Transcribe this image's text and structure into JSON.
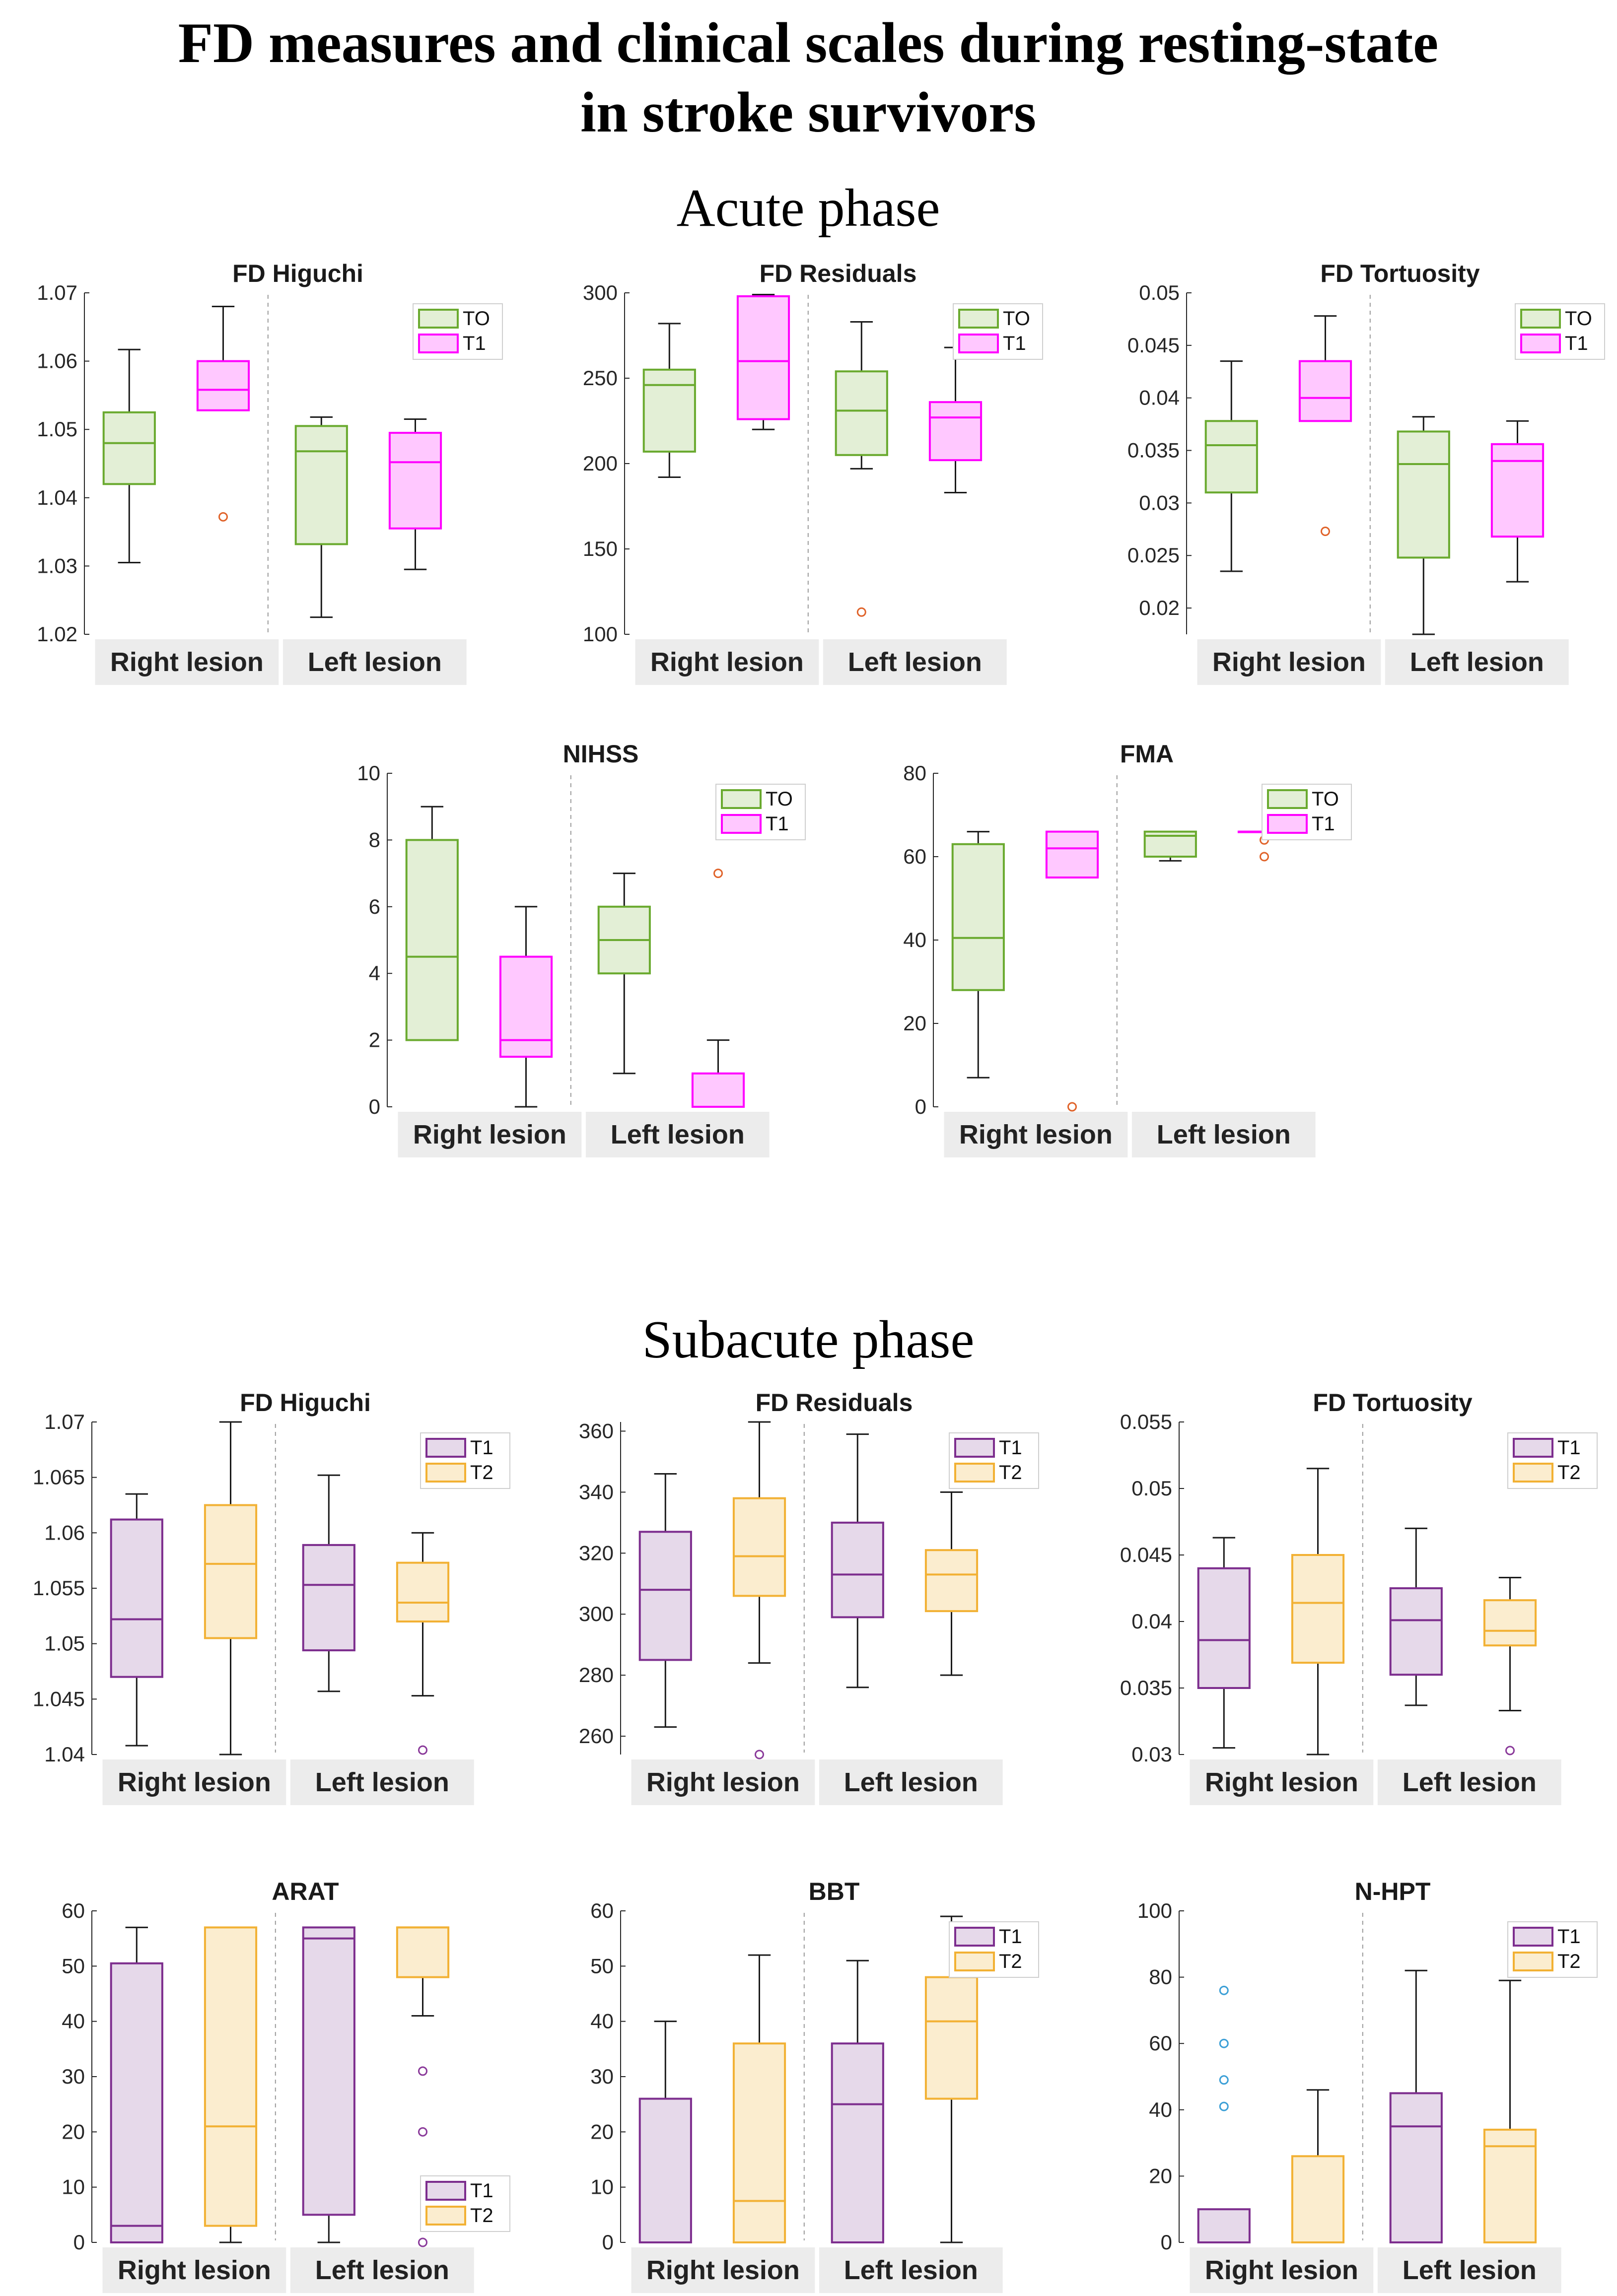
{
  "title_line1": "FD measures and clinical scales during resting-state",
  "title_line2": "in stroke survivors",
  "acute_title": "Acute phase",
  "subacute_title": "Subacute phase",
  "group_labels": [
    "Right lesion",
    "Left lesion"
  ],
  "colors": {
    "T0": {
      "edge": "#6aaa2f",
      "fill": "#e3efd6"
    },
    "T1_acute": {
      "edge": "#ff00ff",
      "fill": "#ffc8ff"
    },
    "T1_sub": {
      "edge": "#7d2e8e",
      "fill": "#e6d9ea"
    },
    "T2": {
      "edge": "#f2b134",
      "fill": "#fbedcf"
    },
    "outlier_acute": "#e0632a",
    "outlier_sub": "#8a3a9a",
    "outlier_nhpt": "#3b9fd6"
  },
  "chart_data": [
    {
      "type": "boxplot",
      "title": "FD Higuchi",
      "phase": "Acute phase",
      "ylim": [
        1.02,
        1.07
      ],
      "yticks": [
        "1.02",
        "1.03",
        "1.04",
        "1.05",
        "1.06",
        "1.07"
      ],
      "legend": [
        "TO",
        "T1"
      ],
      "legend_position": "top-right",
      "categories": [
        "Right lesion",
        "Left lesion"
      ],
      "boxes": [
        {
          "group": "Right lesion",
          "series": "TO",
          "min": 1.0305,
          "q1": 1.042,
          "median": 1.048,
          "q3": 1.0525,
          "max": 1.0617,
          "outliers": []
        },
        {
          "group": "Right lesion",
          "series": "T1",
          "min": 1.0528,
          "q1": 1.0528,
          "median": 1.0558,
          "q3": 1.06,
          "max": 1.068,
          "outliers": [
            1.0372
          ]
        },
        {
          "group": "Left lesion",
          "series": "TO",
          "min": 1.0225,
          "q1": 1.0332,
          "median": 1.0468,
          "q3": 1.0505,
          "max": 1.0518,
          "outliers": []
        },
        {
          "group": "Left lesion",
          "series": "T1",
          "min": 1.0295,
          "q1": 1.0355,
          "median": 1.0452,
          "q3": 1.0495,
          "max": 1.0515,
          "outliers": []
        }
      ]
    },
    {
      "type": "boxplot",
      "title": "FD Residuals",
      "phase": "Acute phase",
      "ylim": [
        100,
        300
      ],
      "yticks": [
        "100",
        "150",
        "200",
        "250",
        "300"
      ],
      "legend": [
        "TO",
        "T1"
      ],
      "legend_position": "top-right",
      "categories": [
        "Right lesion",
        "Left lesion"
      ],
      "boxes": [
        {
          "group": "Right lesion",
          "series": "TO",
          "min": 192,
          "q1": 207,
          "median": 246,
          "q3": 255,
          "max": 282,
          "outliers": []
        },
        {
          "group": "Right lesion",
          "series": "T1",
          "min": 220,
          "q1": 226,
          "median": 260,
          "q3": 298,
          "max": 299,
          "outliers": []
        },
        {
          "group": "Left lesion",
          "series": "TO",
          "min": 197,
          "q1": 205,
          "median": 231,
          "q3": 254,
          "max": 283,
          "outliers": [
            113
          ]
        },
        {
          "group": "Left lesion",
          "series": "T1",
          "min": 183,
          "q1": 202,
          "median": 227,
          "q3": 236,
          "max": 268,
          "outliers": []
        }
      ]
    },
    {
      "type": "boxplot",
      "title": "FD Tortuosity",
      "phase": "Acute phase",
      "ylim": [
        0.0175,
        0.05
      ],
      "yticks": [
        "0.02",
        "0.025",
        "0.03",
        "0.035",
        "0.04",
        "0.045",
        "0.05"
      ],
      "legend": [
        "TO",
        "T1"
      ],
      "legend_position": "top-right",
      "categories": [
        "Right lesion",
        "Left lesion"
      ],
      "boxes": [
        {
          "group": "Right lesion",
          "series": "TO",
          "min": 0.0235,
          "q1": 0.031,
          "median": 0.0355,
          "q3": 0.0378,
          "max": 0.0435,
          "outliers": []
        },
        {
          "group": "Right lesion",
          "series": "T1",
          "min": 0.0378,
          "q1": 0.0378,
          "median": 0.04,
          "q3": 0.0435,
          "max": 0.0478,
          "outliers": [
            0.0273
          ]
        },
        {
          "group": "Left lesion",
          "series": "TO",
          "min": 0.0175,
          "q1": 0.0248,
          "median": 0.0337,
          "q3": 0.0368,
          "max": 0.0382,
          "outliers": []
        },
        {
          "group": "Left lesion",
          "series": "T1",
          "min": 0.0225,
          "q1": 0.0268,
          "median": 0.034,
          "q3": 0.0356,
          "max": 0.0378,
          "outliers": []
        }
      ]
    },
    {
      "type": "boxplot",
      "title": "NIHSS",
      "phase": "Acute phase",
      "ylim": [
        0,
        10
      ],
      "yticks": [
        "0",
        "2",
        "4",
        "6",
        "8",
        "10"
      ],
      "legend": [
        "TO",
        "T1"
      ],
      "legend_position": "top-right",
      "categories": [
        "Right lesion",
        "Left lesion"
      ],
      "boxes": [
        {
          "group": "Right lesion",
          "series": "TO",
          "min": 2,
          "q1": 2,
          "median": 4.5,
          "q3": 8,
          "max": 9,
          "outliers": []
        },
        {
          "group": "Right lesion",
          "series": "T1",
          "min": 0,
          "q1": 1.5,
          "median": 2,
          "q3": 4.5,
          "max": 6,
          "outliers": []
        },
        {
          "group": "Left lesion",
          "series": "TO",
          "min": 1,
          "q1": 4,
          "median": 5,
          "q3": 6,
          "max": 7,
          "outliers": []
        },
        {
          "group": "Left lesion",
          "series": "T1",
          "min": 0,
          "q1": 0,
          "median": 0,
          "q3": 1,
          "max": 2,
          "outliers": [
            7
          ]
        }
      ]
    },
    {
      "type": "boxplot",
      "title": "FMA",
      "phase": "Acute phase",
      "ylim": [
        0,
        80
      ],
      "yticks": [
        "0",
        "20",
        "40",
        "60",
        "80"
      ],
      "legend": [
        "TO",
        "T1"
      ],
      "legend_position": "top-right",
      "categories": [
        "Right lesion",
        "Left lesion"
      ],
      "boxes": [
        {
          "group": "Right lesion",
          "series": "TO",
          "min": 7,
          "q1": 28,
          "median": 40.5,
          "q3": 63,
          "max": 66,
          "outliers": []
        },
        {
          "group": "Right lesion",
          "series": "T1",
          "min": 55,
          "q1": 55,
          "median": 62,
          "q3": 66,
          "max": 66,
          "outliers": [
            0
          ]
        },
        {
          "group": "Left lesion",
          "series": "TO",
          "min": 59,
          "q1": 60,
          "median": 65,
          "q3": 66,
          "max": 66,
          "outliers": []
        },
        {
          "group": "Left lesion",
          "series": "T1",
          "min": 66,
          "q1": 66,
          "median": 66,
          "q3": 66,
          "max": 66,
          "outliers": [
            64,
            60
          ]
        }
      ]
    },
    {
      "type": "boxplot",
      "title": "FD Higuchi",
      "phase": "Subacute phase",
      "ylim": [
        1.04,
        1.07
      ],
      "yticks": [
        "1.04",
        "1.045",
        "1.05",
        "1.055",
        "1.06",
        "1.065",
        "1.07"
      ],
      "legend": [
        "T1",
        "T2"
      ],
      "legend_position": "top-right",
      "categories": [
        "Right lesion",
        "Left lesion"
      ],
      "boxes": [
        {
          "group": "Right lesion",
          "series": "T1",
          "min": 1.0408,
          "q1": 1.047,
          "median": 1.0522,
          "q3": 1.0612,
          "max": 1.0635,
          "outliers": []
        },
        {
          "group": "Right lesion",
          "series": "T2",
          "min": 1.04,
          "q1": 1.0505,
          "median": 1.0572,
          "q3": 1.0625,
          "max": 1.07,
          "outliers": []
        },
        {
          "group": "Left lesion",
          "series": "T1",
          "min": 1.0457,
          "q1": 1.0494,
          "median": 1.0553,
          "q3": 1.0589,
          "max": 1.0652,
          "outliers": []
        },
        {
          "group": "Left lesion",
          "series": "T2",
          "min": 1.0453,
          "q1": 1.052,
          "median": 1.0537,
          "q3": 1.0573,
          "max": 1.06,
          "outliers": [
            1.0404
          ]
        }
      ]
    },
    {
      "type": "boxplot",
      "title": "FD Residuals",
      "phase": "Subacute phase",
      "ylim": [
        254,
        363
      ],
      "yticks": [
        "260",
        "280",
        "300",
        "320",
        "340",
        "360"
      ],
      "legend": [
        "T1",
        "T2"
      ],
      "legend_position": "top-right",
      "categories": [
        "Right lesion",
        "Left lesion"
      ],
      "boxes": [
        {
          "group": "Right lesion",
          "series": "T1",
          "min": 263,
          "q1": 285,
          "median": 308,
          "q3": 327,
          "max": 346,
          "outliers": []
        },
        {
          "group": "Right lesion",
          "series": "T2",
          "min": 284,
          "q1": 306,
          "median": 319,
          "q3": 338,
          "max": 363,
          "outliers": [
            254
          ]
        },
        {
          "group": "Left lesion",
          "series": "T1",
          "min": 276,
          "q1": 299,
          "median": 313,
          "q3": 330,
          "max": 359,
          "outliers": []
        },
        {
          "group": "Left lesion",
          "series": "T2",
          "min": 280,
          "q1": 301,
          "median": 313,
          "q3": 321,
          "max": 340,
          "outliers": []
        }
      ]
    },
    {
      "type": "boxplot",
      "title": "FD Tortuosity",
      "phase": "Subacute phase",
      "ylim": [
        0.03,
        0.055
      ],
      "yticks": [
        "0.03",
        "0.035",
        "0.04",
        "0.045",
        "0.05",
        "0.055"
      ],
      "legend": [
        "T1",
        "T2"
      ],
      "legend_position": "top-right",
      "categories": [
        "Right lesion",
        "Left lesion"
      ],
      "boxes": [
        {
          "group": "Right lesion",
          "series": "T1",
          "min": 0.0305,
          "q1": 0.035,
          "median": 0.0386,
          "q3": 0.044,
          "max": 0.0463,
          "outliers": []
        },
        {
          "group": "Right lesion",
          "series": "T2",
          "min": 0.03,
          "q1": 0.0369,
          "median": 0.0414,
          "q3": 0.045,
          "max": 0.0515,
          "outliers": []
        },
        {
          "group": "Left lesion",
          "series": "T1",
          "min": 0.0337,
          "q1": 0.036,
          "median": 0.0401,
          "q3": 0.0425,
          "max": 0.047,
          "outliers": []
        },
        {
          "group": "Left lesion",
          "series": "T2",
          "min": 0.0333,
          "q1": 0.0382,
          "median": 0.0393,
          "q3": 0.0416,
          "max": 0.0433,
          "outliers": [
            0.0303
          ]
        }
      ]
    },
    {
      "type": "boxplot",
      "title": "ARAT",
      "phase": "Subacute phase",
      "ylim": [
        0,
        60
      ],
      "yticks": [
        "0",
        "10",
        "20",
        "30",
        "40",
        "50",
        "60"
      ],
      "legend": [
        "T1",
        "T2"
      ],
      "legend_position": "bottom-right",
      "categories": [
        "Right lesion",
        "Left lesion"
      ],
      "boxes": [
        {
          "group": "Right lesion",
          "series": "T1",
          "min": 0,
          "q1": 0,
          "median": 3,
          "q3": 50.5,
          "max": 57,
          "outliers": []
        },
        {
          "group": "Right lesion",
          "series": "T2",
          "min": 0,
          "q1": 3,
          "median": 21,
          "q3": 57,
          "max": 57,
          "outliers": []
        },
        {
          "group": "Left lesion",
          "series": "T1",
          "min": 0,
          "q1": 5,
          "median": 55,
          "q3": 57,
          "max": 57,
          "outliers": []
        },
        {
          "group": "Left lesion",
          "series": "T2",
          "min": 41,
          "q1": 48,
          "median": 57,
          "q3": 57,
          "max": 57,
          "outliers": [
            31,
            20,
            0
          ]
        }
      ]
    },
    {
      "type": "boxplot",
      "title": "BBT",
      "phase": "Subacute phase",
      "ylim": [
        0,
        60
      ],
      "yticks": [
        "0",
        "10",
        "20",
        "30",
        "40",
        "50",
        "60"
      ],
      "legend": [
        "T1",
        "T2"
      ],
      "legend_position": "top-right",
      "categories": [
        "Right lesion",
        "Left lesion"
      ],
      "boxes": [
        {
          "group": "Right lesion",
          "series": "T1",
          "min": 0,
          "q1": 0,
          "median": 0,
          "q3": 26,
          "max": 40,
          "outliers": []
        },
        {
          "group": "Right lesion",
          "series": "T2",
          "min": 0,
          "q1": 0,
          "median": 7.5,
          "q3": 36,
          "max": 52,
          "outliers": []
        },
        {
          "group": "Left lesion",
          "series": "T1",
          "min": 0,
          "q1": 0,
          "median": 25,
          "q3": 36,
          "max": 51,
          "outliers": []
        },
        {
          "group": "Left lesion",
          "series": "T2",
          "min": 0,
          "q1": 26,
          "median": 40,
          "q3": 48,
          "max": 59,
          "outliers": []
        }
      ]
    },
    {
      "type": "boxplot",
      "title": "N-HPT",
      "phase": "Subacute phase",
      "ylim": [
        0,
        100
      ],
      "yticks": [
        "0",
        "20",
        "40",
        "60",
        "80",
        "100"
      ],
      "legend": [
        "T1",
        "T2"
      ],
      "legend_position": "top-right",
      "categories": [
        "Right lesion",
        "Left lesion"
      ],
      "boxes": [
        {
          "group": "Right lesion",
          "series": "T1",
          "min": 0,
          "q1": 0,
          "median": 0,
          "q3": 10,
          "max": 10,
          "outliers": [
            76,
            60,
            49,
            41
          ]
        },
        {
          "group": "Right lesion",
          "series": "T2",
          "min": 0,
          "q1": 0,
          "median": 0,
          "q3": 26,
          "max": 46,
          "outliers": []
        },
        {
          "group": "Left lesion",
          "series": "T1",
          "min": 0,
          "q1": 0,
          "median": 35,
          "q3": 45,
          "max": 82,
          "outliers": []
        },
        {
          "group": "Left lesion",
          "series": "T2",
          "min": 0,
          "q1": 0,
          "median": 29,
          "q3": 34,
          "max": 79,
          "outliers": []
        }
      ]
    }
  ]
}
